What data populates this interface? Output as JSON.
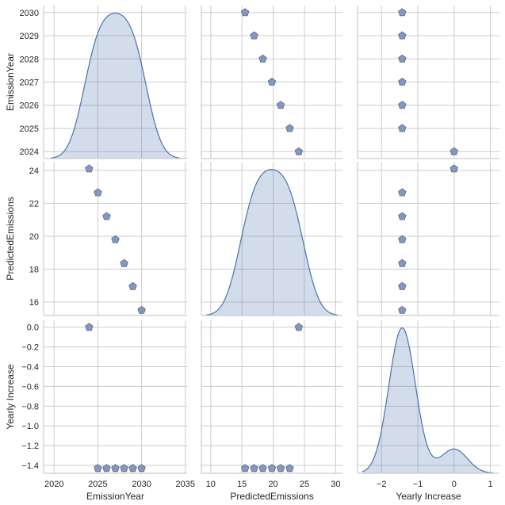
{
  "chart_data": {
    "type": "pairplot",
    "variables": [
      "EmissionYear",
      "PredictedEmissions",
      "Yearly Increase"
    ],
    "data": {
      "EmissionYear": [
        2024,
        2025,
        2026,
        2027,
        2028,
        2029,
        2030
      ],
      "PredictedEmissions": [
        24.1,
        22.65,
        21.2,
        19.8,
        18.35,
        16.95,
        15.5
      ],
      "Yearly Increase": [
        0.0,
        -1.43,
        -1.43,
        -1.43,
        -1.43,
        -1.43,
        -1.43
      ]
    },
    "axis_ranges": {
      "EmissionYear": [
        2018.8,
        2035.2
      ],
      "PredictedEmissions": [
        8.5,
        31.1
      ],
      "Yearly Increase": [
        -2.66,
        1.25
      ]
    },
    "y_ranges": {
      "EmissionYear": [
        2023.7,
        2030.3
      ],
      "PredictedEmissions": [
        15.18,
        24.53
      ],
      "Yearly Increase": [
        -1.48,
        0.07
      ]
    },
    "x_ticks": {
      "EmissionYear": [
        2020,
        2025,
        2030,
        2035
      ],
      "PredictedEmissions": [
        10,
        15,
        20,
        25,
        30
      ],
      "Yearly Increase": [
        -2,
        -1,
        0,
        1
      ]
    },
    "x_tick_labels": {
      "EmissionYear": [
        "2020",
        "2025",
        "2030",
        "2035"
      ],
      "PredictedEmissions": [
        "10",
        "15",
        "20",
        "25",
        "30"
      ],
      "Yearly Increase": [
        "−2",
        "−1",
        "0",
        "1"
      ]
    },
    "y_ticks": {
      "EmissionYear": [
        2024,
        2025,
        2026,
        2027,
        2028,
        2029,
        2030
      ],
      "PredictedEmissions": [
        16,
        18,
        20,
        22,
        24
      ],
      "Yearly Increase": [
        0.0,
        -0.2,
        -0.4,
        -0.6,
        -0.8,
        -1.0,
        -1.2,
        -1.4
      ]
    },
    "y_tick_labels": {
      "EmissionYear": [
        "2024",
        "2025",
        "2026",
        "2027",
        "2028",
        "2029",
        "2030"
      ],
      "PredictedEmissions": [
        "16",
        "18",
        "20",
        "22",
        "24"
      ],
      "Yearly Increase": [
        "0.0",
        "−0.2",
        "−0.4",
        "−0.6",
        "−0.8",
        "−1.0",
        "−1.2",
        "−1.4"
      ]
    },
    "diag": "kde",
    "offdiag": "scatter",
    "marker": "pentagon",
    "grid": true,
    "colors": {
      "line": "#4c72b0",
      "fill": "#4c72b0",
      "marker_fill": "#8497bd",
      "marker_edge": "#5d6d8a",
      "grid": "#cccccc"
    }
  },
  "labels": {
    "EmissionYear": "EmissionYear",
    "PredictedEmissions": "PredictedEmissions",
    "Yearly Increase": "Yearly Increase"
  }
}
